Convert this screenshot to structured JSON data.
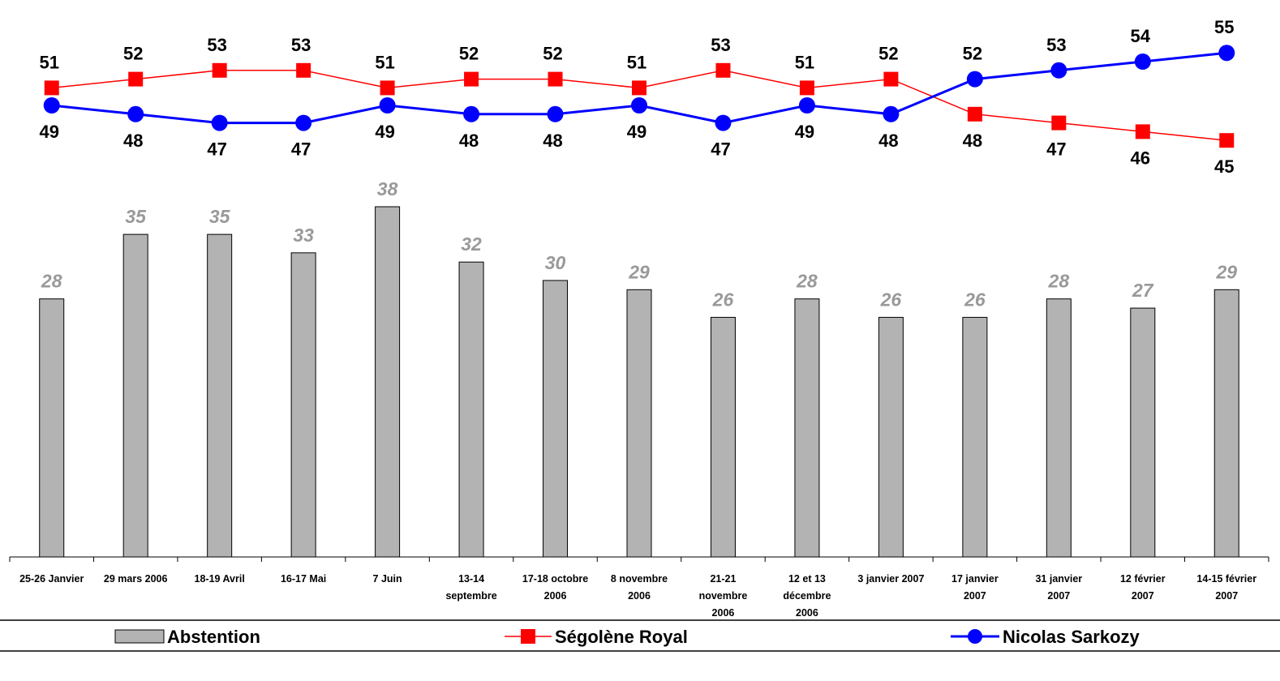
{
  "chart_data": {
    "type": "bar",
    "categories": [
      [
        "25-26 Janvier"
      ],
      [
        "29 mars 2006"
      ],
      [
        "18-19 Avril"
      ],
      [
        "16-17 Mai"
      ],
      [
        "7 Juin"
      ],
      [
        "13-14",
        "septembre"
      ],
      [
        "17-18 octobre",
        "2006"
      ],
      [
        "8 novembre",
        "2006"
      ],
      [
        "21-21",
        "novembre",
        "2006"
      ],
      [
        "12 et 13",
        "décembre",
        "2006"
      ],
      [
        "3 janvier 2007"
      ],
      [
        "17 janvier",
        "2007"
      ],
      [
        "31 janvier",
        "2007"
      ],
      [
        "12 février",
        "2007"
      ],
      [
        "14-15 février",
        "2007"
      ]
    ],
    "series": [
      {
        "name": "Abstention",
        "type": "bar",
        "color": "#b3b3b3",
        "values": [
          28,
          35,
          35,
          33,
          38,
          32,
          30,
          29,
          26,
          28,
          26,
          26,
          28,
          27,
          29
        ]
      },
      {
        "name": "Ségolène Royal",
        "type": "line",
        "color": "#ff0000",
        "marker": "square",
        "values": [
          51,
          52,
          53,
          53,
          51,
          52,
          52,
          51,
          53,
          51,
          52,
          48,
          47,
          46,
          45
        ]
      },
      {
        "name": "Nicolas Sarkozy",
        "type": "line",
        "color": "#0000ff",
        "marker": "circle",
        "values": [
          49,
          48,
          47,
          47,
          49,
          48,
          48,
          49,
          47,
          49,
          48,
          52,
          53,
          54,
          55
        ]
      }
    ],
    "legend_position": "bottom",
    "grid": false,
    "bar_ylim": [
      0,
      40
    ],
    "line_ylim": [
      44,
      56
    ]
  }
}
